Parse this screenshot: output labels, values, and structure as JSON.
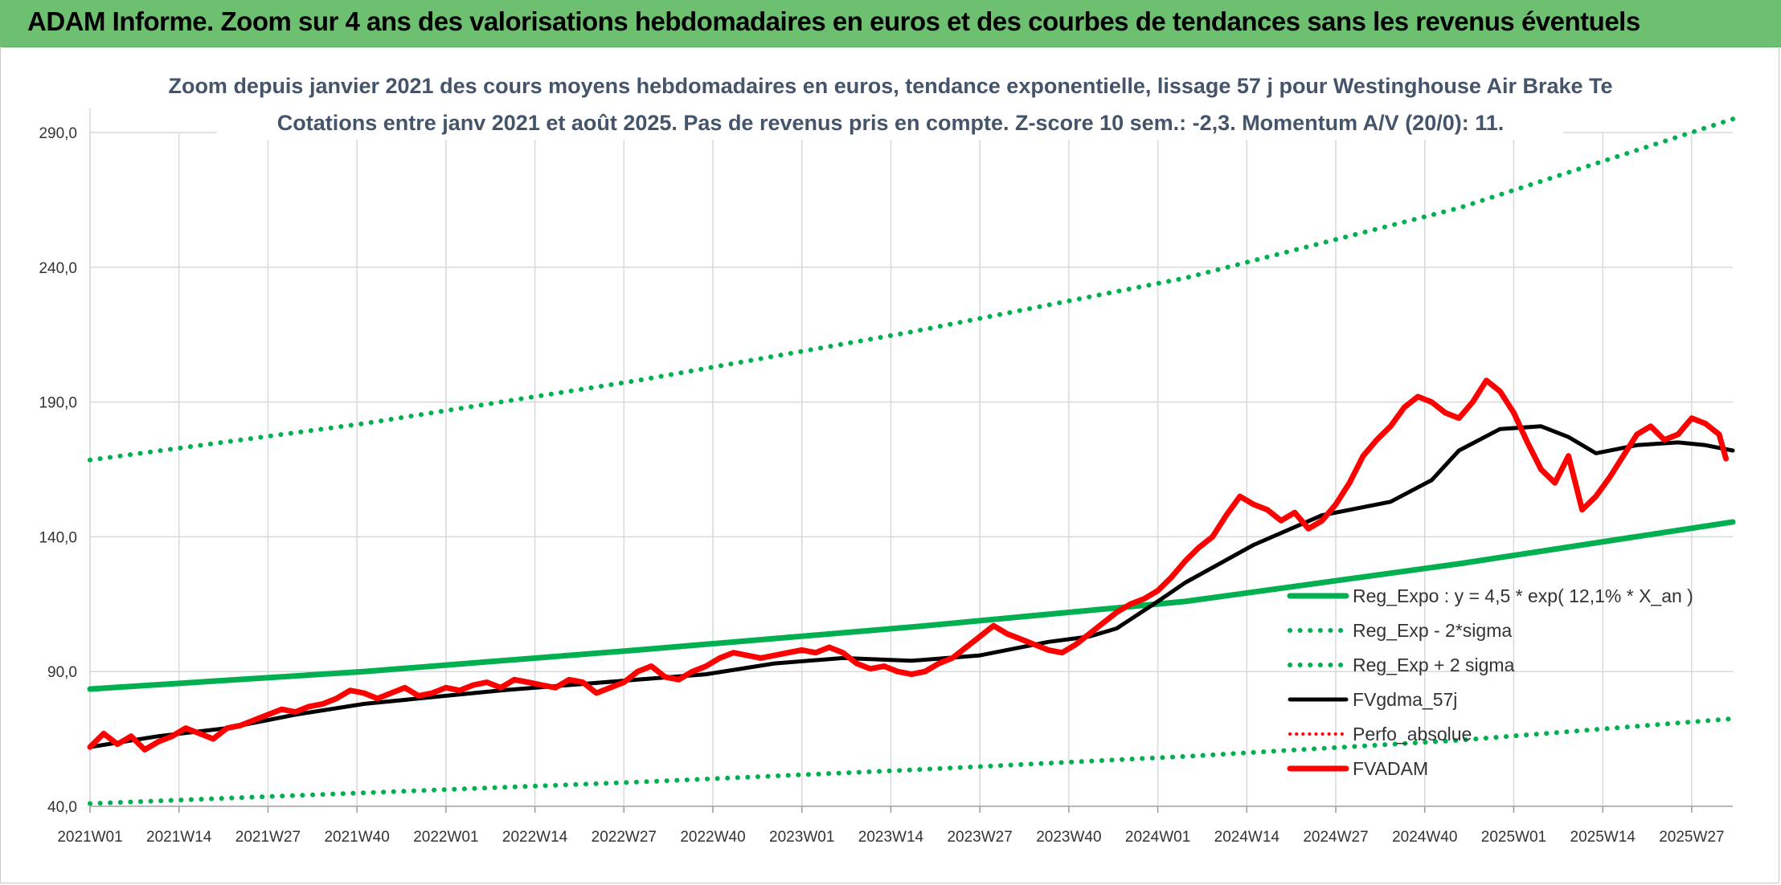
{
  "banner": {
    "title": "ADAM Informe. Zoom sur 4 ans des valorisations hebdomadaires en euros et des courbes de tendances sans les revenus éventuels"
  },
  "colors": {
    "banner": "#6cc070",
    "trend": "#00b050",
    "price": "#ff0000",
    "smooth": "#000000",
    "grid": "#d9d9d9"
  },
  "chart_data": {
    "type": "line",
    "title_lines": [
      "Zoom depuis janvier 2021 des cours moyens hebdomadaires en euros, tendance exponentielle, lissage 57 j pour Westinghouse Air Brake Te",
      "Cotations entre janv 2021 et août 2025. Pas de revenus pris en compte. Z-score 10 sem.: -2,3. Momentum A/V (20/0): 11."
    ],
    "xlabel": "",
    "ylabel": "",
    "ylim": [
      40,
      290
    ],
    "yticks": [
      40,
      90,
      140,
      190,
      240,
      290
    ],
    "ytick_labels": [
      "40,0",
      "90,0",
      "140,0",
      "190,0",
      "240,0",
      "290,0"
    ],
    "x_range": [
      0,
      240
    ],
    "xticks": [
      0,
      13,
      26,
      39,
      52,
      65,
      78,
      91,
      104,
      117,
      130,
      143,
      156,
      169,
      182,
      195,
      208,
      221,
      234
    ],
    "xtick_labels": [
      "2021W01",
      "2021W14",
      "2021W27",
      "2021W40",
      "2022W01",
      "2022W14",
      "2022W27",
      "2022W40",
      "2023W01",
      "2023W14",
      "2023W27",
      "2023W40",
      "2024W01",
      "2024W14",
      "2024W27",
      "2024W40",
      "2025W01",
      "2025W14",
      "2025W27"
    ],
    "grid": true,
    "legend_position": "bottom-right inside plot",
    "series": [
      {
        "name": "Reg_Expo : y = 4,5 * exp( 12,1% *  X_an )",
        "style": "solid-green",
        "x": [
          0,
          40,
          80,
          120,
          160,
          200,
          240
        ],
        "values": [
          83.5,
          90.0,
          98.0,
          106.5,
          116.0,
          130.0,
          145.5
        ]
      },
      {
        "name": "Reg_Exp - 2*sigma",
        "style": "dotted-green",
        "x": [
          0,
          40,
          80,
          120,
          160,
          200,
          240
        ],
        "values": [
          41.0,
          45.0,
          49.0,
          53.5,
          58.5,
          64.5,
          72.5
        ]
      },
      {
        "name": "Reg_Exp + 2 sigma",
        "style": "dotted-green",
        "x": [
          0,
          40,
          80,
          120,
          160,
          200,
          240
        ],
        "values": [
          168.5,
          182.0,
          198.0,
          216.0,
          236.0,
          262.0,
          295.0
        ]
      },
      {
        "name": "FVgdma_57j",
        "style": "solid-black",
        "x": [
          0,
          10,
          20,
          30,
          40,
          52,
          60,
          70,
          80,
          90,
          100,
          110,
          120,
          130,
          140,
          146,
          150,
          156,
          160,
          170,
          180,
          190,
          196,
          200,
          206,
          212,
          216,
          220,
          226,
          232,
          236,
          240
        ],
        "values": [
          62,
          66,
          69,
          74,
          78,
          81,
          83,
          85,
          87,
          89,
          93,
          95,
          94,
          96,
          101,
          103,
          106,
          116,
          123,
          137,
          148,
          153,
          161,
          172,
          180,
          181,
          177,
          171,
          174,
          175,
          174,
          172
        ]
      },
      {
        "name": "Perfo_absolue",
        "style": "dotted-red",
        "x": [],
        "values": []
      },
      {
        "name": "FVADAM",
        "style": "solid-red",
        "x": [
          0,
          2,
          4,
          6,
          8,
          10,
          12,
          14,
          16,
          18,
          20,
          22,
          24,
          26,
          28,
          30,
          32,
          34,
          36,
          38,
          40,
          42,
          44,
          46,
          48,
          50,
          52,
          54,
          56,
          58,
          60,
          62,
          64,
          66,
          68,
          70,
          72,
          74,
          76,
          78,
          80,
          82,
          84,
          86,
          88,
          90,
          92,
          94,
          96,
          98,
          100,
          102,
          104,
          106,
          108,
          110,
          112,
          114,
          116,
          118,
          120,
          122,
          124,
          126,
          128,
          130,
          132,
          134,
          136,
          138,
          140,
          142,
          144,
          146,
          148,
          150,
          152,
          154,
          156,
          158,
          160,
          162,
          164,
          166,
          168,
          170,
          172,
          174,
          176,
          178,
          180,
          182,
          184,
          186,
          188,
          190,
          192,
          194,
          196,
          198,
          200,
          202,
          204,
          206,
          208,
          210,
          212,
          214,
          216,
          218,
          220,
          222,
          224,
          226,
          228,
          230,
          232,
          234,
          236,
          238,
          239
        ],
        "values": [
          62,
          67,
          63,
          66,
          61,
          64,
          66,
          69,
          67,
          65,
          69,
          70,
          72,
          74,
          76,
          75,
          77,
          78,
          80,
          83,
          82,
          80,
          82,
          84,
          81,
          82,
          84,
          83,
          85,
          86,
          84,
          87,
          86,
          85,
          84,
          87,
          86,
          82,
          84,
          86,
          90,
          92,
          88,
          87,
          90,
          92,
          95,
          97,
          96,
          95,
          96,
          97,
          98,
          97,
          99,
          97,
          93,
          91,
          92,
          90,
          89,
          90,
          93,
          95,
          99,
          103,
          107,
          104,
          102,
          100,
          98,
          97,
          100,
          104,
          108,
          112,
          115,
          117,
          120,
          125,
          131,
          136,
          140,
          148,
          155,
          152,
          150,
          146,
          149,
          143,
          146,
          152,
          160,
          170,
          176,
          181,
          188,
          192,
          190,
          186,
          184,
          190,
          198,
          194,
          186,
          175,
          165,
          160,
          170,
          150,
          155,
          162,
          170,
          178,
          181,
          176,
          178,
          184,
          182,
          178,
          169
        ]
      }
    ]
  }
}
